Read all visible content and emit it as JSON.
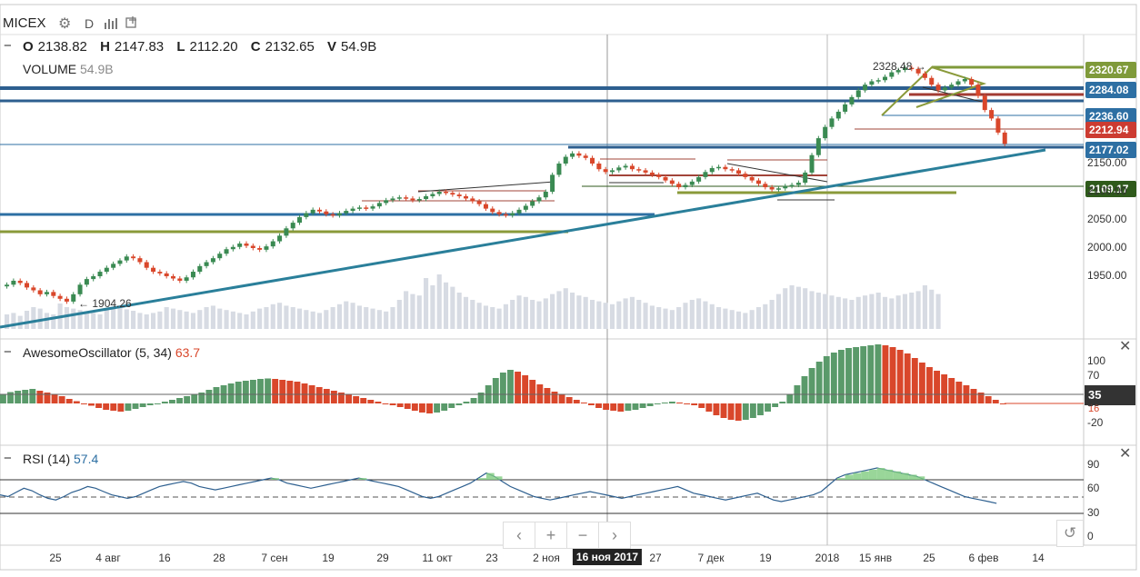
{
  "header": {
    "symbol": "MICEX",
    "interval": "D",
    "ohlc": {
      "o_label": "O",
      "o": "2138.82",
      "h_label": "H",
      "h": "2147.83",
      "l_label": "L",
      "l": "2112.20",
      "c_label": "C",
      "c": "2132.65",
      "v_label": "V",
      "v": "54.9B"
    },
    "volume_label": "VOLUME",
    "volume_value": "54.9B"
  },
  "price_labels": [
    {
      "text": "2320.67",
      "color": "#7f9a3a",
      "price": 2320.67
    },
    {
      "text": "2284.08",
      "color": "#2d6fa3",
      "price": 2284.08
    },
    {
      "text": "2236.60",
      "color": "#2d6fa3",
      "price": 2236.6
    },
    {
      "text": "2212.94",
      "color": "#cc3b31",
      "price": 2212.94
    },
    {
      "text": "2177.02",
      "color": "#2d6fa3",
      "price": 2177.02
    },
    {
      "text": "2109.17",
      "color": "#2f5a1b",
      "price": 2109.17
    }
  ],
  "annotations": {
    "high": "2328.48",
    "low": "1904.26"
  },
  "panes": {
    "ao": {
      "title": "AwesomeOscillator (5, 34)",
      "value": "63.7",
      "marker": "35",
      "marker_small": "16"
    },
    "rsi": {
      "title": "RSI (14)",
      "value": "57.4"
    }
  },
  "icons": {
    "settings": "gear-icon",
    "bars": "bar-chart-icon",
    "add": "add-indicator-icon",
    "close": "close-icon",
    "reset": "reset-icon"
  },
  "nav": {
    "prev": "‹",
    "zoom_in": "+",
    "zoom_out": "−",
    "next": "›",
    "reset": "↺"
  },
  "chart_data": [
    {
      "type": "candlestick",
      "symbol": "MICEX",
      "interval": "D",
      "ylim": [
        1900,
        2400
      ],
      "y_ticks": [
        "2150.00",
        "2100.00",
        "2050.00",
        "2000.00",
        "1950.00"
      ],
      "x_ticks": [
        "25",
        "4 авг",
        "16",
        "28",
        "7 сен",
        "19",
        "29",
        "11 окт",
        "23",
        "2 ноя",
        "16 ноя 2017",
        "27",
        "7 дек",
        "19",
        "2018",
        "15 янв",
        "25",
        "6 фев",
        "14"
      ],
      "crosshair_date": "16 ноя 2017",
      "levels": [
        2320.67,
        2284.08,
        2236.6,
        2212.94,
        2177.02,
        2109.17
      ],
      "high_annotation": 2328.48,
      "low_annotation": 1904.26,
      "close_series": [
        1935,
        1942,
        1938,
        1930,
        1925,
        1918,
        1922,
        1915,
        1910,
        1905,
        1918,
        1935,
        1945,
        1950,
        1958,
        1965,
        1972,
        1978,
        1985,
        1982,
        1975,
        1965,
        1958,
        1955,
        1950,
        1946,
        1942,
        1948,
        1958,
        1968,
        1975,
        1982,
        1990,
        1998,
        2002,
        2008,
        2004,
        2000,
        1997,
        2003,
        2012,
        2022,
        2035,
        2045,
        2055,
        2062,
        2068,
        2065,
        2060,
        2058,
        2062,
        2066,
        2070,
        2072,
        2070,
        2074,
        2080,
        2085,
        2088,
        2090,
        2088,
        2085,
        2087,
        2092,
        2096,
        2100,
        2098,
        2095,
        2092,
        2088,
        2083,
        2078,
        2070,
        2064,
        2060,
        2058,
        2062,
        2068,
        2075,
        2083,
        2090,
        2100,
        2130,
        2150,
        2162,
        2168,
        2164,
        2160,
        2150,
        2140,
        2135,
        2138,
        2143,
        2146,
        2140,
        2138,
        2134,
        2130,
        2126,
        2120,
        2114,
        2108,
        2112,
        2118,
        2126,
        2135,
        2142,
        2144,
        2140,
        2138,
        2132,
        2126,
        2120,
        2114,
        2108,
        2104,
        2106,
        2110,
        2112,
        2116,
        2134,
        2165,
        2195,
        2215,
        2230,
        2242,
        2255,
        2268,
        2280,
        2290,
        2296,
        2298,
        2304,
        2312,
        2316,
        2320,
        2318,
        2310,
        2302,
        2290,
        2280,
        2285,
        2290,
        2296,
        2300,
        2290,
        2270,
        2245,
        2230,
        2205,
        2185
      ],
      "volume_series": [
        20,
        22,
        18,
        25,
        30,
        28,
        22,
        20,
        35,
        30,
        28,
        26,
        24,
        22,
        20,
        26,
        28,
        30,
        27,
        25,
        22,
        20,
        22,
        24,
        30,
        28,
        26,
        24,
        22,
        26,
        30,
        32,
        28,
        26,
        24,
        22,
        20,
        24,
        28,
        30,
        34,
        36,
        32,
        30,
        28,
        26,
        24,
        22,
        26,
        30,
        34,
        38,
        36,
        32,
        30,
        28,
        26,
        24,
        30,
        40,
        52,
        48,
        46,
        70,
        60,
        75,
        64,
        58,
        50,
        44,
        40,
        36,
        32,
        30,
        28,
        34,
        40,
        46,
        44,
        40,
        38,
        42,
        48,
        52,
        56,
        50,
        46,
        44,
        40,
        38,
        36,
        34,
        38,
        42,
        44,
        40,
        36,
        32,
        30,
        28,
        26,
        30,
        36,
        40,
        42,
        38,
        34,
        30,
        28,
        26,
        24,
        22,
        26,
        30,
        34,
        40,
        48,
        56,
        60,
        58,
        56,
        52,
        50,
        48,
        46,
        44,
        42,
        40,
        44,
        46,
        48,
        50,
        44,
        42,
        46,
        48,
        50,
        52,
        60,
        54,
        48
      ],
      "ao_series": [
        20,
        25,
        28,
        30,
        32,
        28,
        24,
        20,
        16,
        10,
        5,
        0,
        -5,
        -10,
        -14,
        -16,
        -18,
        -16,
        -12,
        -8,
        -4,
        0,
        4,
        8,
        12,
        16,
        20,
        24,
        30,
        36,
        40,
        44,
        48,
        50,
        52,
        54,
        55,
        54,
        52,
        50,
        48,
        44,
        40,
        36,
        32,
        28,
        24,
        20,
        16,
        12,
        8,
        4,
        0,
        -4,
        -8,
        -12,
        -16,
        -20,
        -22,
        -20,
        -16,
        -10,
        -4,
        4,
        12,
        24,
        40,
        56,
        68,
        74,
        70,
        62,
        52,
        42,
        34,
        26,
        20,
        14,
        8,
        2,
        -4,
        -10,
        -14,
        -16,
        -18,
        -16,
        -14,
        -10,
        -6,
        -2,
        2,
        4,
        2,
        0,
        -4,
        -10,
        -18,
        -26,
        -32,
        -36,
        -38,
        -36,
        -32,
        -26,
        -18,
        -8,
        4,
        20,
        40,
        60,
        78,
        92,
        104,
        112,
        118,
        122,
        124,
        126,
        128,
        130,
        128,
        124,
        118,
        110,
        100,
        90,
        80,
        72,
        64,
        56,
        48,
        40,
        32,
        24,
        16,
        8,
        0
      ],
      "rsi_series": [
        52,
        50,
        55,
        60,
        57,
        52,
        48,
        46,
        50,
        55,
        58,
        62,
        60,
        56,
        52,
        50,
        48,
        50,
        54,
        58,
        62,
        64,
        66,
        68,
        66,
        62,
        60,
        58,
        60,
        62,
        64,
        66,
        68,
        70,
        72,
        70,
        66,
        64,
        62,
        60,
        62,
        64,
        66,
        68,
        70,
        72,
        70,
        68,
        66,
        64,
        62,
        58,
        54,
        50,
        48,
        50,
        54,
        58,
        62,
        66,
        72,
        78,
        74,
        68,
        62,
        58,
        54,
        50,
        48,
        46,
        48,
        50,
        52,
        54,
        56,
        54,
        52,
        50,
        48,
        50,
        52,
        54,
        56,
        58,
        60,
        62,
        58,
        54,
        52,
        50,
        48,
        46,
        48,
        50,
        52,
        54,
        50,
        46,
        44,
        46,
        48,
        50,
        52,
        56,
        64,
        72,
        76,
        78,
        80,
        82,
        84,
        82,
        80,
        78,
        76,
        74,
        70,
        66,
        62,
        58,
        54,
        50,
        48,
        46,
        44,
        42
      ],
      "ao_ticks": [
        "100",
        "70",
        "10",
        "-20"
      ],
      "rsi_ticks": [
        "90",
        "60",
        "30",
        "0"
      ]
    }
  ]
}
